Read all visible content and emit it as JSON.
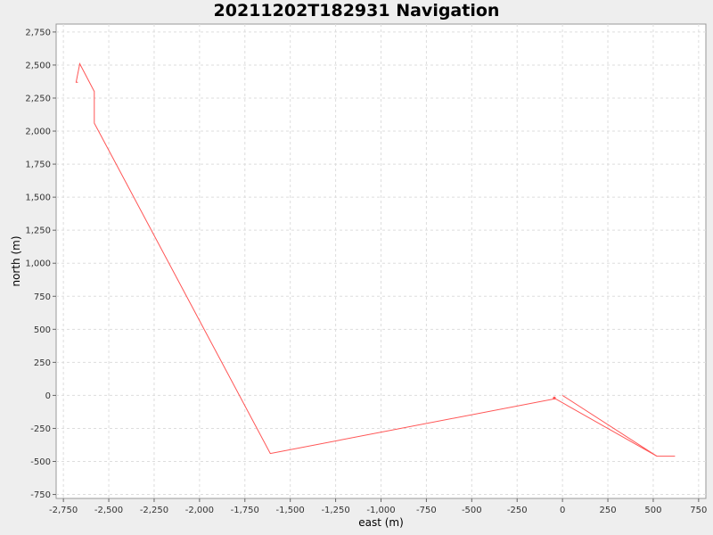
{
  "chart_data": {
    "type": "line",
    "title": "20211202T182931 Navigation",
    "xlabel": "east (m)",
    "ylabel": "north (m)",
    "xlim": [
      -2790,
      790
    ],
    "ylim": [
      -780,
      2810
    ],
    "grid": true,
    "x_ticks": [
      -2750,
      -2500,
      -2250,
      -2000,
      -1750,
      -1500,
      -1250,
      -1000,
      -750,
      -500,
      -250,
      0,
      250,
      500,
      750
    ],
    "x_tick_labels": [
      "-2,750",
      "-2,500",
      "-2,250",
      "-2,000",
      "-1,750",
      "-1,500",
      "-1,250",
      "-1,000",
      "-750",
      "-500",
      "-250",
      "0",
      "250",
      "500",
      "750"
    ],
    "y_ticks": [
      -750,
      -500,
      -250,
      0,
      250,
      500,
      750,
      1000,
      1250,
      1500,
      1750,
      2000,
      2250,
      2500,
      2750
    ],
    "y_tick_labels": [
      "-750",
      "-500",
      "-250",
      "0",
      "250",
      "500",
      "750",
      "1,000",
      "1,250",
      "1,500",
      "1,750",
      "2,000",
      "2,250",
      "2,500",
      "2,750"
    ],
    "series": [
      {
        "color": "#ff5555",
        "x": [
          0,
          520,
          620,
          520,
          -40,
          -1610,
          -2580,
          -2580,
          -2660,
          -2680,
          -2670
        ],
        "y": [
          0,
          -460,
          -460,
          -460,
          -25,
          -440,
          2060,
          2300,
          2510,
          2370,
          2370
        ]
      }
    ],
    "markers": [
      {
        "x": -45,
        "y": -20,
        "color": "#ff5555"
      }
    ]
  }
}
